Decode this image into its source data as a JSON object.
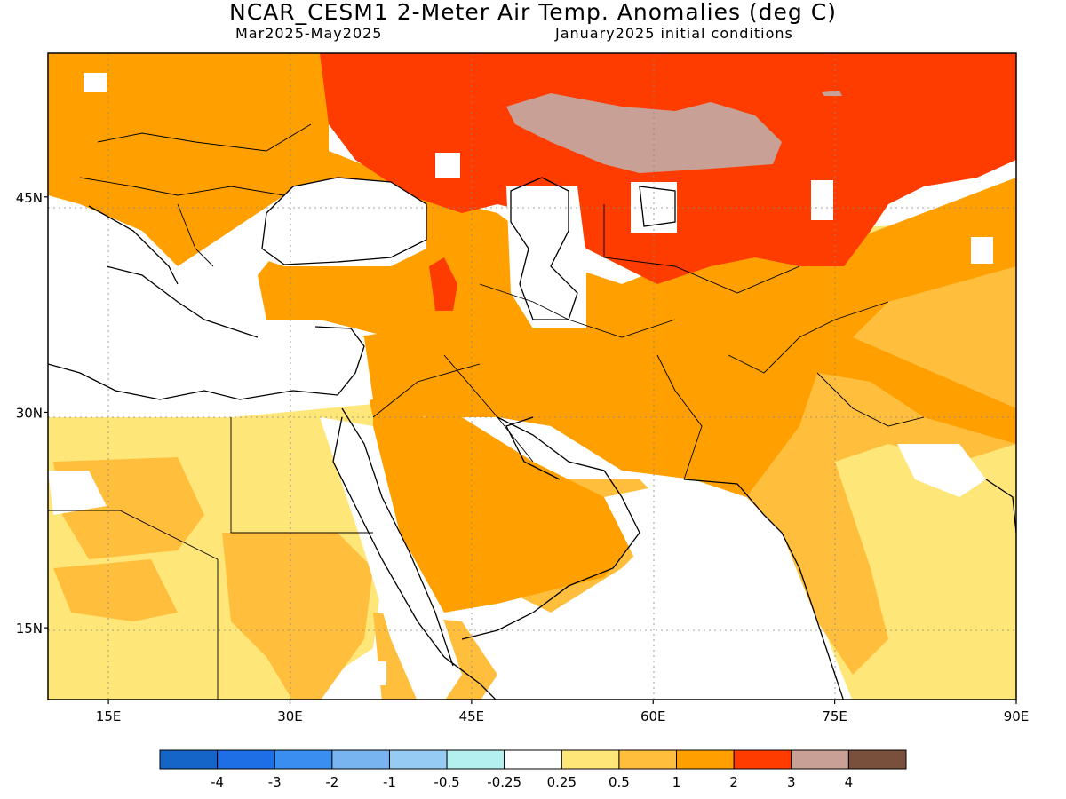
{
  "title": "NCAR_CESM1 2-Meter Air Temp. Anomalies (deg C)",
  "subtitle_period": "Mar2025-May2025",
  "subtitle_init": "January2025 initial conditions",
  "map": {
    "lon_range": [
      10,
      90
    ],
    "lat_range": [
      10,
      55
    ],
    "lon_ticks": [
      {
        "value": 15,
        "label": "15E"
      },
      {
        "value": 30,
        "label": "30E"
      },
      {
        "value": 45,
        "label": "45E"
      },
      {
        "value": 60,
        "label": "60E"
      },
      {
        "value": 75,
        "label": "75E"
      },
      {
        "value": 90,
        "label": "90E"
      }
    ],
    "lat_ticks": [
      {
        "value": 45,
        "label": "45N"
      },
      {
        "value": 30,
        "label": "30N"
      },
      {
        "value": 15,
        "label": "15N"
      }
    ]
  },
  "colorbar": {
    "colors": [
      "#1565c8",
      "#1e6ee6",
      "#3a8ef0",
      "#78b4f0",
      "#96ccf4",
      "#b4f0f0",
      "#ffffff",
      "#ffe678",
      "#ffbe3c",
      "#ffa000",
      "#ff3c00",
      "#c8a096",
      "#78503c"
    ],
    "labels": [
      "-4",
      "-3",
      "-2",
      "-1",
      "-0.5",
      "-0.25",
      "0.25",
      "0.5",
      "1",
      "2",
      "3",
      "4"
    ]
  }
}
